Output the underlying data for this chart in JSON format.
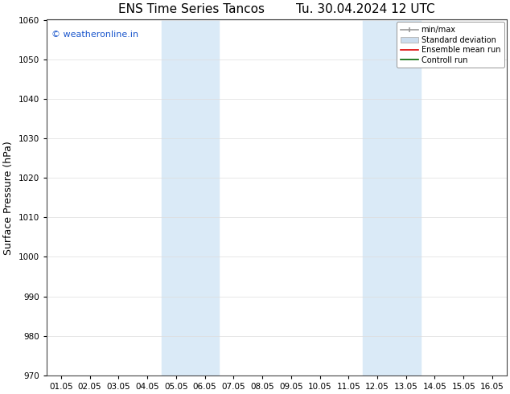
{
  "title_left": "ENS Time Series Tancos",
  "title_right": "Tu. 30.04.2024 12 UTC",
  "ylabel": "Surface Pressure (hPa)",
  "ylim": [
    970,
    1060
  ],
  "yticks": [
    970,
    980,
    990,
    1000,
    1010,
    1020,
    1030,
    1040,
    1050,
    1060
  ],
  "xtick_labels": [
    "01.05",
    "02.05",
    "03.05",
    "04.05",
    "05.05",
    "06.05",
    "07.05",
    "08.05",
    "09.05",
    "10.05",
    "11.05",
    "12.05",
    "13.05",
    "14.05",
    "15.05",
    "16.05"
  ],
  "x_positions": [
    0,
    1,
    2,
    3,
    4,
    5,
    6,
    7,
    8,
    9,
    10,
    11,
    12,
    13,
    14,
    15
  ],
  "xlim": [
    -0.5,
    15.5
  ],
  "shade_bands": [
    {
      "x_start": 3.5,
      "x_end": 5.5,
      "color": "#daeaf7"
    },
    {
      "x_start": 10.5,
      "x_end": 12.5,
      "color": "#daeaf7"
    }
  ],
  "copyright_text": "© weatheronline.in",
  "copyright_color": "#1a56cc",
  "bg_color": "#ffffff",
  "legend_labels": [
    "min/max",
    "Standard deviation",
    "Ensemble mean run",
    "Controll run"
  ],
  "legend_colors": [
    "#999999",
    "#bbbbbb",
    "#dd0000",
    "#006600"
  ],
  "title_fontsize": 11,
  "axis_label_fontsize": 9,
  "tick_fontsize": 7.5,
  "legend_fontsize": 7,
  "copyright_fontsize": 8
}
